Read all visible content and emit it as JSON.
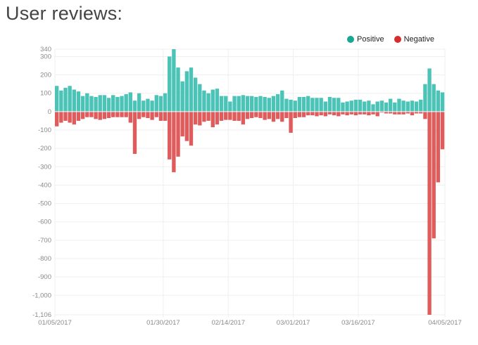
{
  "page": {
    "title": "User reviews:"
  },
  "chart_data": {
    "type": "bar",
    "title": "",
    "xlabel": "",
    "ylabel": "",
    "ylim": [
      -1106,
      340
    ],
    "yticks": [
      340,
      300,
      200,
      100,
      0,
      -100,
      -200,
      -300,
      -400,
      -500,
      -600,
      -700,
      -800,
      -900,
      -1000,
      -1106
    ],
    "ytick_labels": [
      "340",
      "300",
      "200",
      "100",
      "0",
      "-100",
      "-200",
      "-300",
      "-400",
      "-500",
      "-600",
      "-700",
      "-800",
      "-900",
      "-1,000",
      "-1,106"
    ],
    "xticks": [
      {
        "index": 0,
        "label": "01/05/2017"
      },
      {
        "index": 25,
        "label": "01/30/2017"
      },
      {
        "index": 40,
        "label": "02/14/2017"
      },
      {
        "index": 55,
        "label": "03/01/2017"
      },
      {
        "index": 70,
        "label": "03/16/2017"
      },
      {
        "index": 90,
        "label": "04/05/2017"
      }
    ],
    "grid": true,
    "legend_position": "top-right",
    "series": [
      {
        "name": "Positive",
        "color": "#4cc3b7",
        "values": [
          140,
          115,
          130,
          140,
          120,
          110,
          85,
          100,
          85,
          80,
          90,
          90,
          75,
          90,
          80,
          85,
          95,
          105,
          60,
          100,
          60,
          70,
          60,
          90,
          85,
          100,
          300,
          340,
          240,
          165,
          220,
          240,
          185,
          150,
          115,
          100,
          120,
          125,
          85,
          85,
          55,
          85,
          85,
          90,
          85,
          85,
          80,
          85,
          80,
          75,
          85,
          95,
          115,
          70,
          65,
          60,
          80,
          80,
          85,
          75,
          75,
          75,
          55,
          80,
          75,
          75,
          50,
          55,
          60,
          65,
          65,
          55,
          60,
          40,
          55,
          60,
          50,
          70,
          50,
          70,
          60,
          55,
          60,
          55,
          65,
          150,
          235,
          150,
          115,
          105
        ]
      },
      {
        "name": "Negative",
        "color": "#e05b5b",
        "values": [
          -80,
          -60,
          -50,
          -60,
          -70,
          -50,
          -40,
          -30,
          -30,
          -40,
          -45,
          -40,
          -35,
          -30,
          -30,
          -30,
          -30,
          -60,
          -230,
          -40,
          -30,
          -35,
          -45,
          -30,
          -50,
          -50,
          -260,
          -330,
          -245,
          -135,
          -160,
          -185,
          -70,
          -75,
          -55,
          -50,
          -85,
          -70,
          -50,
          -45,
          -45,
          -50,
          -50,
          -70,
          -40,
          -35,
          -30,
          -35,
          -45,
          -40,
          -55,
          -40,
          -55,
          -35,
          -115,
          -35,
          -30,
          -30,
          -20,
          -20,
          -25,
          -20,
          -25,
          -15,
          -20,
          -25,
          -15,
          -20,
          -15,
          -20,
          -15,
          -15,
          -20,
          -15,
          -25,
          -5,
          -10,
          -10,
          -15,
          -15,
          -15,
          -10,
          -20,
          -10,
          -10,
          -40,
          -1106,
          -690,
          -385,
          -205
        ]
      }
    ]
  }
}
